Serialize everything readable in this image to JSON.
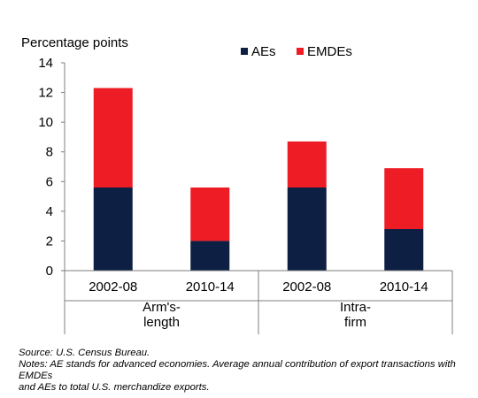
{
  "chart_data": {
    "type": "bar",
    "stacked": true,
    "ylabel": "Percentage points",
    "ylim": [
      0,
      14
    ],
    "yticks": [
      0,
      2,
      4,
      6,
      8,
      10,
      12,
      14
    ],
    "grid": false,
    "legend_position": "top-right",
    "categories": [
      "2002-08",
      "2010-14",
      "2002-08",
      "2010-14"
    ],
    "groups": [
      {
        "label_line1": "Arm's-",
        "label_line2": "length"
      },
      {
        "label_line1": "Intra-",
        "label_line2": "firm"
      }
    ],
    "series": [
      {
        "name": "AEs",
        "color": "#0d1f42",
        "values": [
          5.6,
          2.0,
          5.6,
          2.8
        ]
      },
      {
        "name": "EMDEs",
        "color": "#ee1c25",
        "values": [
          6.7,
          3.6,
          3.1,
          4.1
        ]
      }
    ]
  },
  "footer": {
    "source": "Source: U.S. Census Bureau.",
    "notes_line1": "Notes: AE stands for advanced economies. Average annual contribution of export transactions with EMDEs",
    "notes_line2": "and AEs to total U.S. merchandize exports."
  }
}
